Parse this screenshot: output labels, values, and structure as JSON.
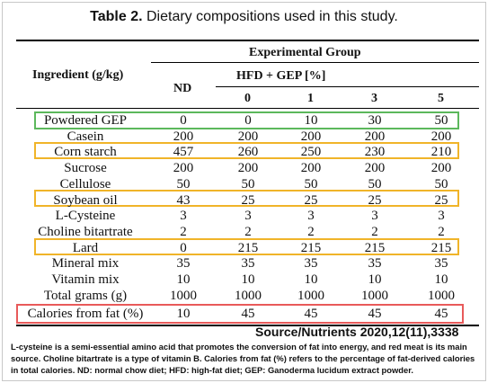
{
  "title": {
    "prefix": "Table 2.",
    "text": " Dietary compositions used in this study."
  },
  "table": {
    "ingredient_header": "Ingredient (g/kg)",
    "group_header": "Experimental Group",
    "nd_header": "ND",
    "hfd_header": "HFD + GEP [%]",
    "gep_levels": [
      "0",
      "1",
      "3",
      "5"
    ],
    "rows": [
      {
        "ingredient": "Powdered GEP",
        "values": [
          "0",
          "0",
          "10",
          "30",
          "50"
        ]
      },
      {
        "ingredient": "Casein",
        "values": [
          "200",
          "200",
          "200",
          "200",
          "200"
        ]
      },
      {
        "ingredient": "Corn starch",
        "values": [
          "457",
          "260",
          "250",
          "230",
          "210"
        ]
      },
      {
        "ingredient": "Sucrose",
        "values": [
          "200",
          "200",
          "200",
          "200",
          "200"
        ]
      },
      {
        "ingredient": "Cellulose",
        "values": [
          "50",
          "50",
          "50",
          "50",
          "50"
        ]
      },
      {
        "ingredient": "Soybean oil",
        "values": [
          "43",
          "25",
          "25",
          "25",
          "25"
        ]
      },
      {
        "ingredient": "L-Cysteine",
        "values": [
          "3",
          "3",
          "3",
          "3",
          "3"
        ]
      },
      {
        "ingredient": "Choline bitartrate",
        "values": [
          "2",
          "2",
          "2",
          "2",
          "2"
        ]
      },
      {
        "ingredient": "Lard",
        "values": [
          "0",
          "215",
          "215",
          "215",
          "215"
        ]
      },
      {
        "ingredient": "Mineral mix",
        "values": [
          "35",
          "35",
          "35",
          "35",
          "35"
        ]
      },
      {
        "ingredient": "Vitamin mix",
        "values": [
          "10",
          "10",
          "10",
          "10",
          "10"
        ]
      },
      {
        "ingredient": "Total grams (g)",
        "values": [
          "1000",
          "1000",
          "1000",
          "1000",
          "1000"
        ]
      },
      {
        "ingredient": "Calories from fat (%)",
        "values": [
          "10",
          "45",
          "45",
          "45",
          "45"
        ]
      }
    ]
  },
  "highlights": {
    "green": "#5cb85c",
    "orange": "#f0b429",
    "red": "#e85a5a"
  },
  "source": "Source/Nutrients 2020,12(11),3338",
  "note": "L-cysteine is a semi-essential amino acid that promotes the conversion of fat into energy, and red meat is its main source. Choline bitartrate is a type of vitamin B.  Calories from fat (%) refers to the percentage of fat-derived calories in total calories. ND: normal chow diet; HFD: high-fat diet; GEP: Ganoderma lucidum extract powder."
}
